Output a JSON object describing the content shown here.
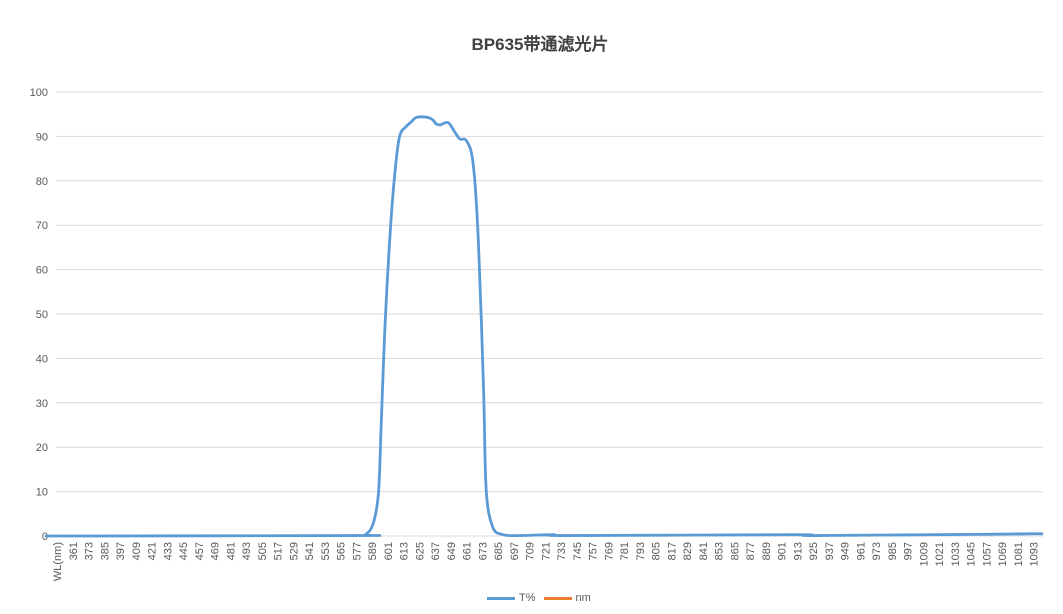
{
  "chart_data": {
    "type": "line",
    "title": "BP635带通滤光片",
    "xlabel": "",
    "ylabel": "",
    "ylim": [
      0,
      100
    ],
    "yticks": [
      0,
      10,
      20,
      30,
      40,
      50,
      60,
      70,
      80,
      90,
      100
    ],
    "grid": true,
    "legend_position": "bottom",
    "categories": [
      "WL(nm)",
      "361",
      "373",
      "385",
      "397",
      "409",
      "421",
      "433",
      "445",
      "457",
      "469",
      "481",
      "493",
      "505",
      "517",
      "529",
      "541",
      "553",
      "565",
      "577",
      "589",
      "601",
      "613",
      "625",
      "637",
      "649",
      "661",
      "673",
      "685",
      "697",
      "709",
      "721",
      "733",
      "745",
      "757",
      "769",
      "781",
      "793",
      "805",
      "817",
      "829",
      "841",
      "853",
      "865",
      "877",
      "889",
      "901",
      "913",
      "925",
      "937",
      "949",
      "961",
      "973",
      "985",
      "997",
      "1009",
      "1021",
      "1033",
      "1045",
      "1057",
      "1069",
      "1081",
      "1093"
    ],
    "series": [
      {
        "name": "T%",
        "color": "#5b9bd5",
        "x": [
          361,
          577,
          584,
          590,
          594,
          596,
          599,
          603,
          606.5,
          610,
          615,
          619,
          623,
          631,
          635,
          638,
          641,
          647,
          652,
          656,
          661,
          666,
          670,
          674,
          676,
          681,
          689,
          700,
          727,
          740,
          913,
          925,
          1060,
          1093
        ],
        "y": [
          0,
          0.1,
          0.3,
          2.9,
          10,
          25,
          48,
          69,
          82,
          90,
          92.2,
          93.3,
          94.3,
          94.3,
          93.8,
          92.8,
          92.6,
          93.1,
          91,
          89.4,
          89,
          84,
          66.7,
          33,
          10.4,
          2,
          0.3,
          0.1,
          0.3,
          0.1,
          0.3,
          0.1,
          0.4,
          0.5
        ]
      },
      {
        "name": "nm",
        "color": "#ed7d31",
        "x": [],
        "y": []
      }
    ]
  }
}
